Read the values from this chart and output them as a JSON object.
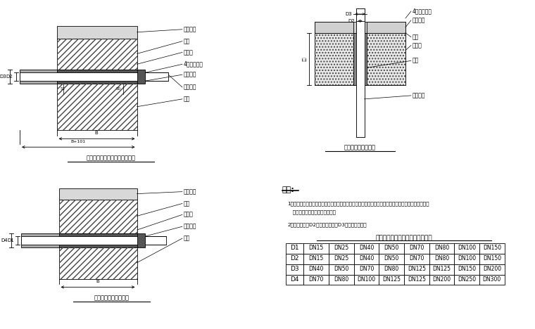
{
  "background_color": "#ffffff",
  "fig_width": 7.6,
  "fig_height": 4.68,
  "dpi": 100,
  "table_D1": [
    "D1",
    "DN15",
    "DN25",
    "DN40",
    "DN50",
    "DN70",
    "DN80",
    "DN100",
    "DN150"
  ],
  "table_D2": [
    "D2",
    "DN15",
    "DN25",
    "DN40",
    "DN50",
    "DN70",
    "DN80",
    "DN100",
    "DN150"
  ],
  "table_D3": [
    "D3",
    "DN40",
    "DN50",
    "DN70",
    "DN80",
    "DN125",
    "DN125",
    "DN150",
    "DN200"
  ],
  "table_D4": [
    "D4",
    "DN70",
    "DN80",
    "DN100",
    "DN125",
    "DN125",
    "DN200",
    "DN250",
    "DN300"
  ],
  "note_title": "说明:",
  "note1": "1．本图若用于高层建筑时，燃气管在穿基础墙处其上端与套管断肩处以橡胶垫最大洗簿分准，两侧保留",
  "note1b": "   一定间隙，并用沥青油麻堵严。",
  "note2": "2．管束重量由D2应按计算确定，D3应按相应调整。",
  "table_title": "室内燃气管套管规格（公称直径）",
  "caption1": "燃气地下引入管穿基础墙的做法",
  "caption2": "燃气管穿楼板的做法",
  "caption3": "燃气管穿隔断墙的做法"
}
